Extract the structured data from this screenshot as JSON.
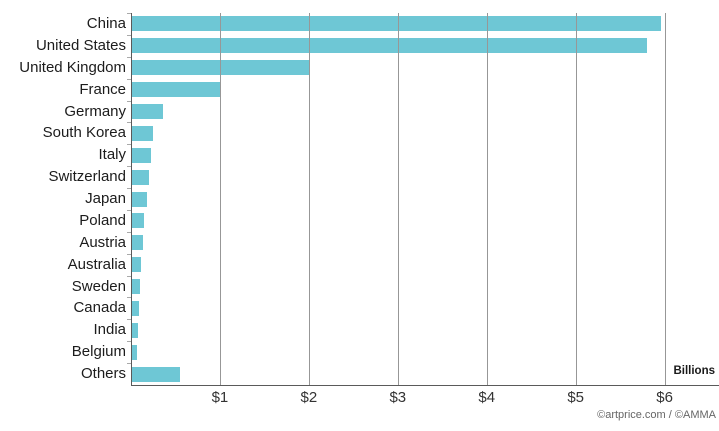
{
  "chart_data": {
    "type": "bar",
    "orientation": "horizontal",
    "title": "",
    "xlabel": "Billions",
    "ylabel": "",
    "categories": [
      "China",
      "United States",
      "United Kingdom",
      "France",
      "Germany",
      "South Korea",
      "Italy",
      "Switzerland",
      "Japan",
      "Poland",
      "Austria",
      "Australia",
      "Sweden",
      "Canada",
      "India",
      "Belgium",
      "Others"
    ],
    "values": [
      5.95,
      5.79,
      2.0,
      1.0,
      0.35,
      0.24,
      0.21,
      0.19,
      0.17,
      0.14,
      0.12,
      0.1,
      0.09,
      0.08,
      0.07,
      0.06,
      0.54
    ],
    "xlim": [
      0,
      6.6
    ],
    "x_tick_values": [
      1,
      2,
      3,
      4,
      5,
      6
    ],
    "x_tick_labels": [
      "$1",
      "$2",
      "$3",
      "$4",
      "$5",
      "$6"
    ],
    "grid": "vertical-gridlines-over-bars",
    "legend": "none",
    "bar_color": "#6EC7D5",
    "gridline_color": "#979797",
    "axis_color": "#5a5a5a"
  },
  "footer": {
    "credit": "©artprice.com / ©AMMA"
  }
}
